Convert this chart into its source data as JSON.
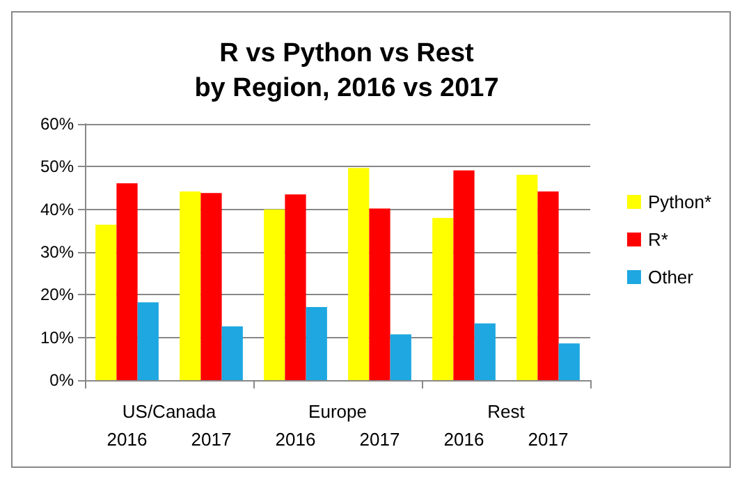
{
  "chart_data": {
    "type": "bar",
    "title": "R vs Python vs Rest\nby Region, 2016 vs 2017",
    "categories": [
      "2016",
      "2017",
      "2016",
      "2017",
      "2016",
      "2017"
    ],
    "annotations": [
      "US/Canada",
      "Europe",
      "Rest"
    ],
    "series": [
      {
        "name": "Python*",
        "color": "#ffff00",
        "values": [
          36.4,
          44.2,
          40.0,
          49.7,
          38.0,
          48.1
        ]
      },
      {
        "name": "R*",
        "color": "#ff0000",
        "values": [
          46.1,
          43.8,
          43.5,
          40.2,
          49.1,
          44.2
        ]
      },
      {
        "name": "Other",
        "color": "#1ea7e1",
        "values": [
          18.2,
          12.6,
          17.1,
          10.7,
          13.3,
          8.6
        ]
      }
    ],
    "ylim": [
      0,
      60
    ],
    "yticks": [
      {
        "value": 0,
        "label": "0%"
      },
      {
        "value": 10,
        "label": "10%"
      },
      {
        "value": 20,
        "label": "20%"
      },
      {
        "value": 30,
        "label": "30%"
      },
      {
        "value": 40,
        "label": "40%"
      },
      {
        "value": 50,
        "label": "50%"
      },
      {
        "value": 60,
        "label": "60%"
      }
    ],
    "grid": "y",
    "legend": "right"
  }
}
